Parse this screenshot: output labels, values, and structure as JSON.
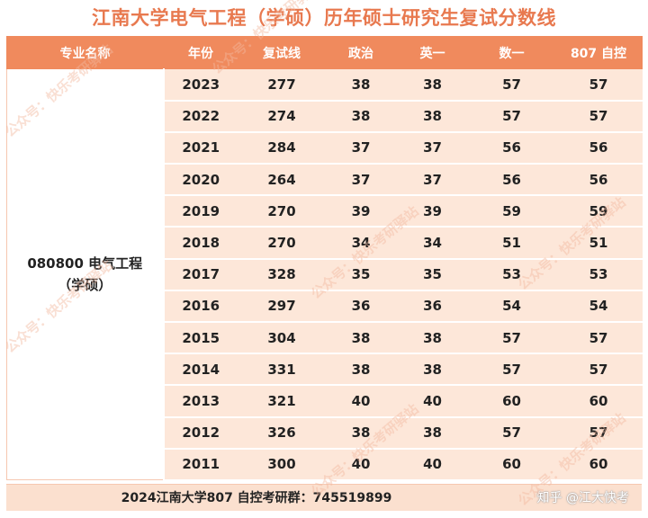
{
  "title": "江南大学电气工程（学硕）历年硕士研究生复试分数线",
  "headers": [
    "专业名称",
    "年份",
    "复试线",
    "政治",
    "英一",
    "数一",
    "807 自控"
  ],
  "major_line1": "080800 电气工程",
  "major_line2": "（学硕）",
  "rows": [
    [
      "2023",
      "277",
      "38",
      "38",
      "57",
      "57"
    ],
    [
      "2022",
      "274",
      "38",
      "38",
      "57",
      "57"
    ],
    [
      "2021",
      "284",
      "37",
      "37",
      "56",
      "56"
    ],
    [
      "2020",
      "264",
      "37",
      "37",
      "56",
      "56"
    ],
    [
      "2019",
      "270",
      "39",
      "39",
      "59",
      "59"
    ],
    [
      "2018",
      "270",
      "34",
      "34",
      "51",
      "51"
    ],
    [
      "2017",
      "328",
      "35",
      "35",
      "53",
      "53"
    ],
    [
      "2016",
      "297",
      "36",
      "36",
      "54",
      "54"
    ],
    [
      "2015",
      "304",
      "38",
      "38",
      "57",
      "57"
    ],
    [
      "2014",
      "331",
      "38",
      "38",
      "57",
      "57"
    ],
    [
      "2013",
      "321",
      "40",
      "40",
      "60",
      "60"
    ],
    [
      "2012",
      "326",
      "38",
      "38",
      "57",
      "57"
    ],
    [
      "2011",
      "300",
      "40",
      "40",
      "60",
      "60"
    ]
  ],
  "footer": "2024江南大学807 自控考研群：745519899",
  "zhihu_credit": "知乎 @江大快考",
  "watermark": "公众号：快乐考研驿站",
  "colors": {
    "header_bg": "#f08a5d",
    "row_bg": "#fde7d9",
    "title": "#e8794f"
  }
}
